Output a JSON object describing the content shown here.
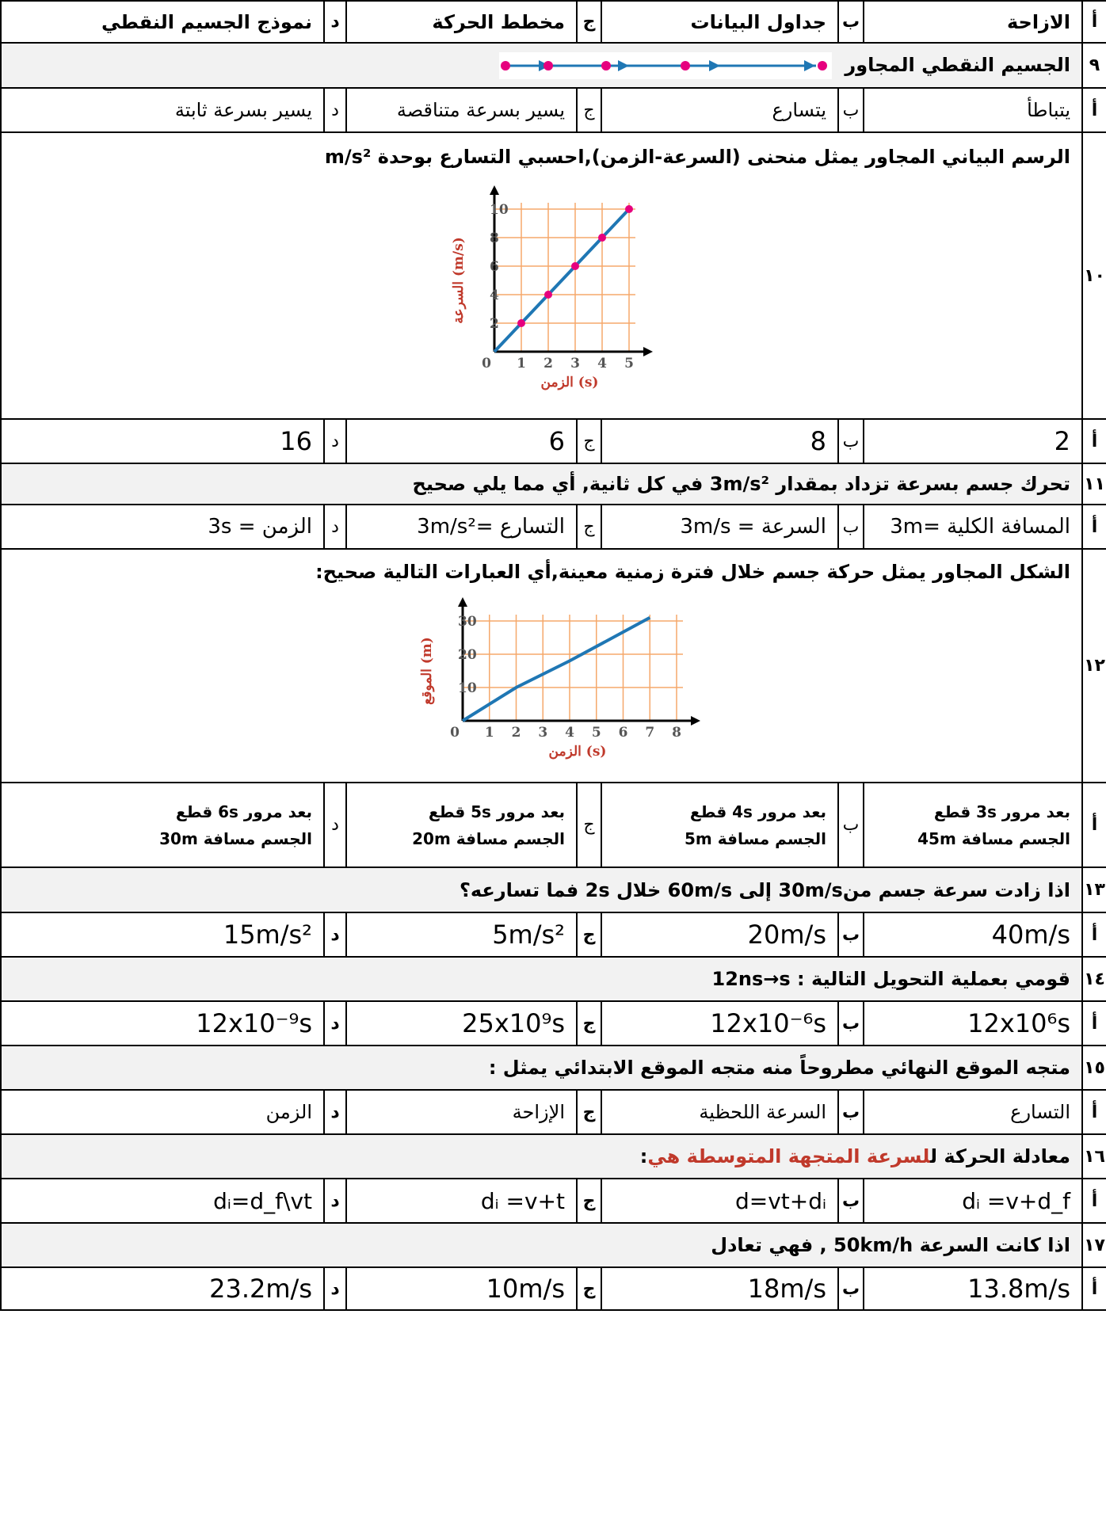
{
  "rows": {
    "r1": {
      "a_letter": "أ",
      "a": "الازاحة",
      "b_letter": "ب",
      "b": "جداول البيانات",
      "c_letter": "ج",
      "c": "مخطط الحركة",
      "d_letter": "د",
      "d": "نموذج الجسيم النقطي"
    },
    "q9": {
      "num": "٩",
      "text": "الجسيم النقطي المجاور"
    },
    "r9": {
      "a_letter": "أ",
      "a": "يتباطأ",
      "b_letter": "ب",
      "b": "يتسارع",
      "c_letter": "ج",
      "c": "يسير بسرعة متناقصة",
      "d_letter": "د",
      "d": "يسير بسرعة ثابتة"
    },
    "q10": {
      "num": "١٠",
      "text": "الرسم البياني المجاور يمثل منحنى (السرعة-الزمن),احسبي التسارع بوحدة m/s²"
    },
    "r10": {
      "a_letter": "أ",
      "a": "2",
      "b_letter": "ب",
      "b": "8",
      "c_letter": "ج",
      "c": "6",
      "d_letter": "د",
      "d": "16"
    },
    "q11": {
      "num": "١١",
      "text": "تحرك جسم بسرعة تزداد بمقدار 3m/s² في كل ثانية, أي مما يلي صحيح"
    },
    "r11": {
      "a_letter": "أ",
      "a": "المسافة الكلية =3m",
      "b_letter": "ب",
      "b": "السرعة = 3m/s",
      "c_letter": "ج",
      "c": "التسارع =3m/s²",
      "d_letter": "د",
      "d": "الزمن = 3s"
    },
    "q12": {
      "num": "١٢",
      "text": "الشكل المجاور يمثل حركة جسم خلال فترة زمنية معينة,أي العبارات التالية صحيح:"
    },
    "r12": {
      "a_letter": "أ",
      "a1": "بعد مرور 3s قطع",
      "a2": "الجسم مسافة 45m",
      "b_letter": "ب",
      "b1": "بعد مرور 4s قطع",
      "b2": "الجسم مسافة 5m",
      "c_letter": "ج",
      "c1": "بعد مرور 5s قطع",
      "c2": "الجسم مسافة 20m",
      "d_letter": "د",
      "d1": "بعد مرور 6s قطع",
      "d2": "الجسم مسافة 30m"
    },
    "q13": {
      "num": "١٣",
      "text": "اذا زادت سرعة جسم من30m/s إلى 60m/s خلال 2s فما تسارعه؟"
    },
    "r13": {
      "a_letter": "أ",
      "a": "40m/s",
      "b_letter": "ب",
      "b": "20m/s",
      "c_letter": "ج",
      "c": "5m/s²",
      "d_letter": "د",
      "d": "15m/s²"
    },
    "q14": {
      "num": "١٤",
      "text": "قومي بعملية التحويل التالية : 12ns→s"
    },
    "r14": {
      "a_letter": "أ",
      "a": "12x10⁶s",
      "b_letter": "ب",
      "b": "12x10⁻⁶s",
      "c_letter": "ج",
      "c": "25x10⁹s",
      "d_letter": "د",
      "d": "12x10⁻⁹s"
    },
    "q15": {
      "num": "١٥",
      "text": "متجه الموقع النهائي مطروحاً منه متجه الموقع الابتدائي يمثل :"
    },
    "r15": {
      "a_letter": "أ",
      "a": "التسارع",
      "b_letter": "ب",
      "b": "السرعة اللحظية",
      "c_letter": "ج",
      "c": "الإزاحة",
      "d_letter": "د",
      "d": "الزمن"
    },
    "q16": {
      "num": "١٦",
      "text_pre": "معادلة الحركة ل",
      "text_red": "لسرعة المتجهة المتوسطة هي",
      "text_post": ":"
    },
    "r16": {
      "a_letter": "أ",
      "a": "dᵢ =v+d_f",
      "b_letter": "ب",
      "b": "d=vt+dᵢ",
      "c_letter": "ج",
      "c": "dᵢ =v+t",
      "d_letter": "د",
      "d": "dᵢ=d_f\\vt"
    },
    "q17": {
      "num": "١٧",
      "text": "اذا كانت السرعة 50km/h , فهي تعادل"
    },
    "r17": {
      "a_letter": "أ",
      "a": "13.8m/s",
      "b_letter": "ب",
      "b": "18m/s",
      "c_letter": "ج",
      "c": "10m/s",
      "d_letter": "د",
      "d": "23.2m/s"
    }
  },
  "figure_q10": {
    "y_ticks": [
      "10",
      "8",
      "6",
      "4",
      "2"
    ],
    "x_ticks": [
      "0",
      "1",
      "2",
      "3",
      "4",
      "5"
    ],
    "y_label": "(m/s) السرعة",
    "x_label": "(s) الزمن",
    "chart_data": {
      "type": "line",
      "x": [
        0,
        1,
        2,
        3,
        4,
        5
      ],
      "y": [
        0,
        2,
        4,
        6,
        8,
        10
      ],
      "ylim": [
        0,
        10
      ],
      "xlim": [
        0,
        5
      ]
    }
  },
  "figure_q12": {
    "y_ticks": [
      "30",
      "20",
      "10"
    ],
    "x_ticks": [
      "0",
      "1",
      "2",
      "3",
      "4",
      "5",
      "6",
      "7",
      "8"
    ],
    "y_label": "(m) الموقع",
    "x_label": "(s) الزمن",
    "chart_data": {
      "type": "line",
      "x": [
        0,
        2,
        4,
        7
      ],
      "y": [
        0,
        10,
        18,
        31
      ],
      "ylim": [
        0,
        30
      ],
      "xlim": [
        0,
        8
      ]
    }
  },
  "colors": {
    "line": "#1f77b4",
    "dot": "#e6007e",
    "grid": "#f5a86b",
    "axis": "#000000",
    "label": "#c0392b",
    "question_bg": "#f2f2f2"
  }
}
